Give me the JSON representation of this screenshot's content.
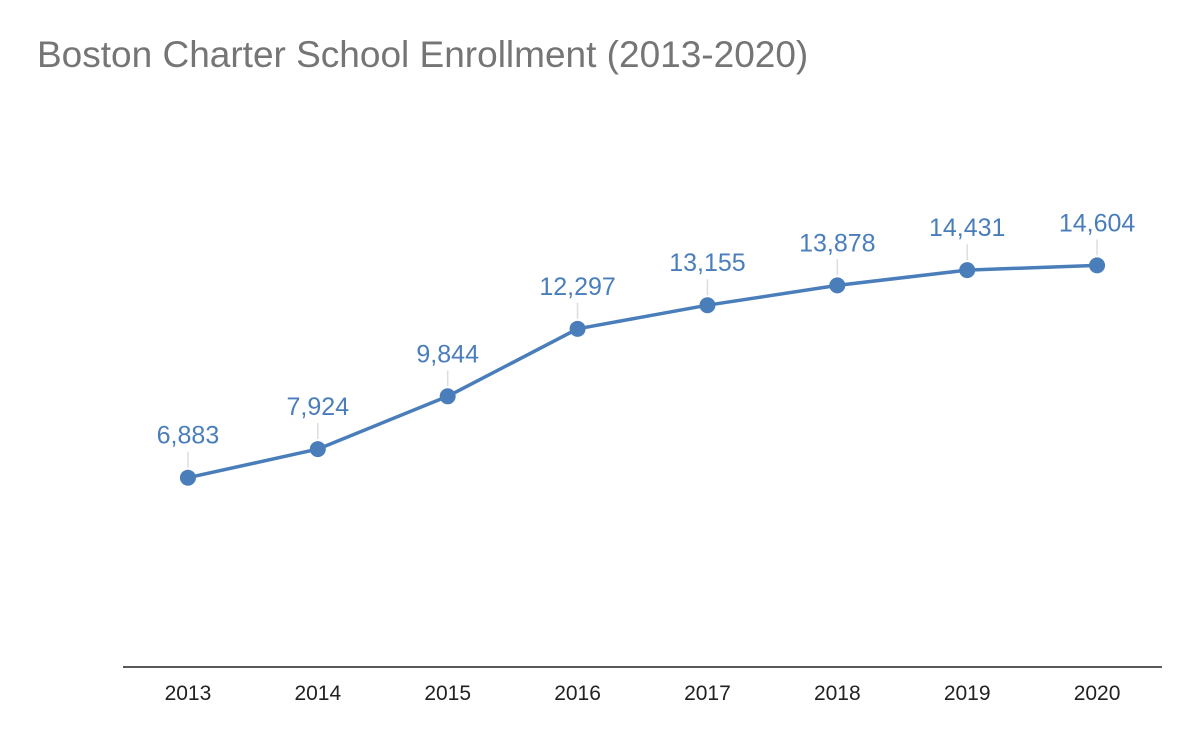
{
  "chart_data": {
    "type": "line",
    "title": "Boston Charter School Enrollment (2013-2020)",
    "xlabel": "",
    "ylabel": "",
    "categories": [
      "2013",
      "2014",
      "2015",
      "2016",
      "2017",
      "2018",
      "2019",
      "2020"
    ],
    "series": [
      {
        "values": [
          6883,
          7924,
          9844,
          12297,
          13155,
          13878,
          14431,
          14604
        ],
        "labels": [
          "6,883",
          "7,924",
          "9,844",
          "12,297",
          "13,155",
          "13,878",
          "14,431",
          "14,604"
        ]
      }
    ],
    "ylim": [
      0,
      21000
    ],
    "grid": false,
    "legend": "none",
    "y_axis_visible": false,
    "data_labels": true,
    "colors": {
      "series": "#4a7ebb",
      "title": "#757575",
      "axis": "#222222",
      "leader": "#dddddd"
    }
  }
}
